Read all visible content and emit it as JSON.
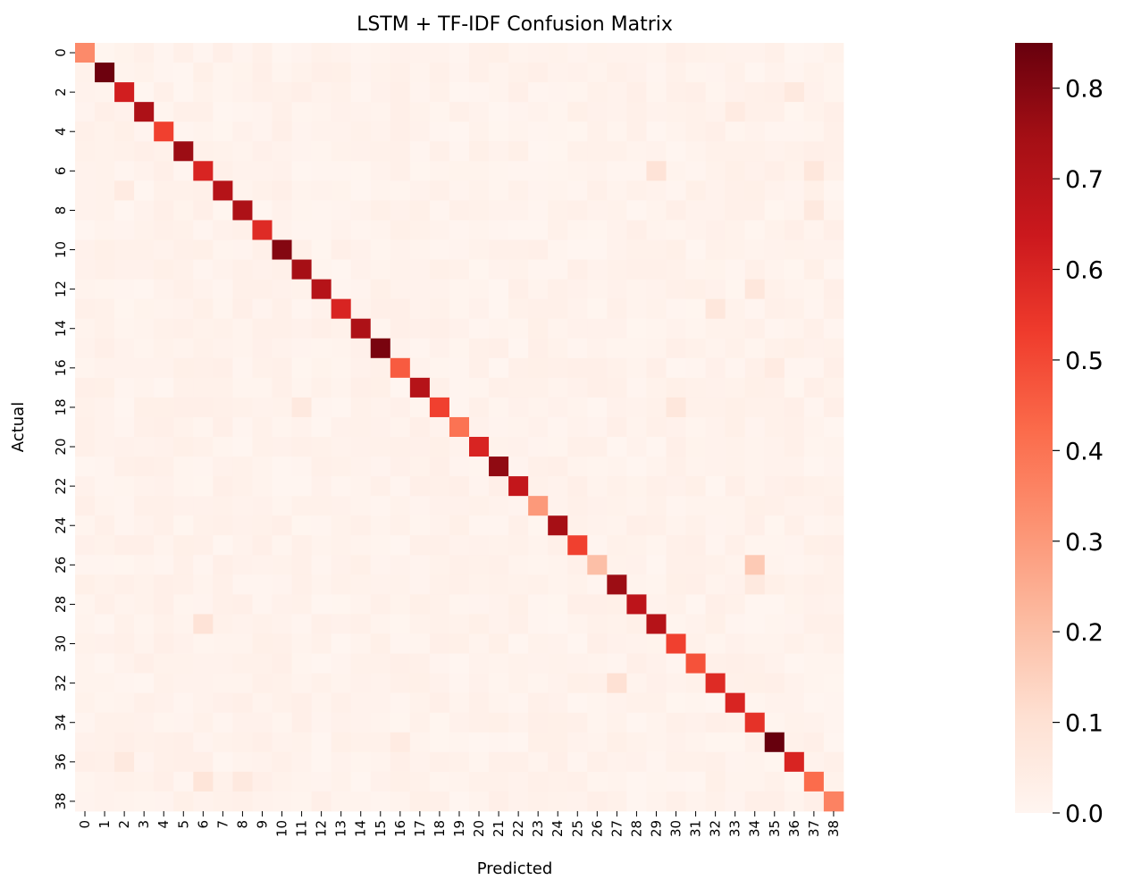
{
  "chart_data": {
    "type": "heatmap",
    "title": "LSTM + TF-IDF Confusion Matrix",
    "xlabel": "Predicted",
    "ylabel": "Actual",
    "x_tick_labels": [
      "0",
      "1",
      "2",
      "3",
      "4",
      "5",
      "6",
      "7",
      "8",
      "9",
      "10",
      "11",
      "12",
      "13",
      "14",
      "15",
      "16",
      "17",
      "18",
      "19",
      "20",
      "21",
      "22",
      "23",
      "24",
      "25",
      "26",
      "27",
      "28",
      "29",
      "30",
      "31",
      "32",
      "33",
      "34",
      "35",
      "36",
      "37",
      "38"
    ],
    "y_tick_labels": [
      "0",
      "2",
      "4",
      "6",
      "8",
      "10",
      "12",
      "14",
      "16",
      "18",
      "20",
      "22",
      "24",
      "26",
      "28",
      "30",
      "32",
      "34",
      "36",
      "38"
    ],
    "diagonal": [
      0.34,
      0.84,
      0.62,
      0.72,
      0.52,
      0.76,
      0.6,
      0.7,
      0.72,
      0.58,
      0.8,
      0.74,
      0.7,
      0.6,
      0.72,
      0.82,
      0.46,
      0.7,
      0.52,
      0.4,
      0.6,
      0.78,
      0.66,
      0.3,
      0.74,
      0.52,
      0.2,
      0.76,
      0.68,
      0.7,
      0.52,
      0.48,
      0.58,
      0.6,
      0.56,
      0.85,
      0.6,
      0.42,
      0.36
    ],
    "notable_off_diagonal": [
      {
        "actual": 2,
        "predicted": 36,
        "value": 0.06
      },
      {
        "actual": 3,
        "predicted": 33,
        "value": 0.05
      },
      {
        "actual": 6,
        "predicted": 29,
        "value": 0.09
      },
      {
        "actual": 6,
        "predicted": 37,
        "value": 0.07
      },
      {
        "actual": 7,
        "predicted": 2,
        "value": 0.05
      },
      {
        "actual": 8,
        "predicted": 37,
        "value": 0.06
      },
      {
        "actual": 12,
        "predicted": 34,
        "value": 0.07
      },
      {
        "actual": 13,
        "predicted": 32,
        "value": 0.07
      },
      {
        "actual": 16,
        "predicted": 35,
        "value": 0.05
      },
      {
        "actual": 18,
        "predicted": 11,
        "value": 0.06
      },
      {
        "actual": 18,
        "predicted": 30,
        "value": 0.07
      },
      {
        "actual": 26,
        "predicted": 34,
        "value": 0.17
      },
      {
        "actual": 27,
        "predicted": 34,
        "value": 0.06
      },
      {
        "actual": 29,
        "predicted": 6,
        "value": 0.09
      },
      {
        "actual": 32,
        "predicted": 27,
        "value": 0.1
      },
      {
        "actual": 35,
        "predicted": 16,
        "value": 0.05
      },
      {
        "actual": 36,
        "predicted": 2,
        "value": 0.06
      },
      {
        "actual": 37,
        "predicted": 6,
        "value": 0.08
      },
      {
        "actual": 37,
        "predicted": 8,
        "value": 0.06
      }
    ],
    "colorscale": "Reds",
    "colorbar_range": [
      0.0,
      0.85
    ],
    "colorbar_ticks": [
      0.0,
      0.1,
      0.2,
      0.3,
      0.4,
      0.5,
      0.6,
      0.7,
      0.8
    ],
    "colorbar_tick_labels": [
      "0.0",
      "0.1",
      "0.2",
      "0.3",
      "0.4",
      "0.5",
      "0.6",
      "0.7",
      "0.8"
    ]
  }
}
